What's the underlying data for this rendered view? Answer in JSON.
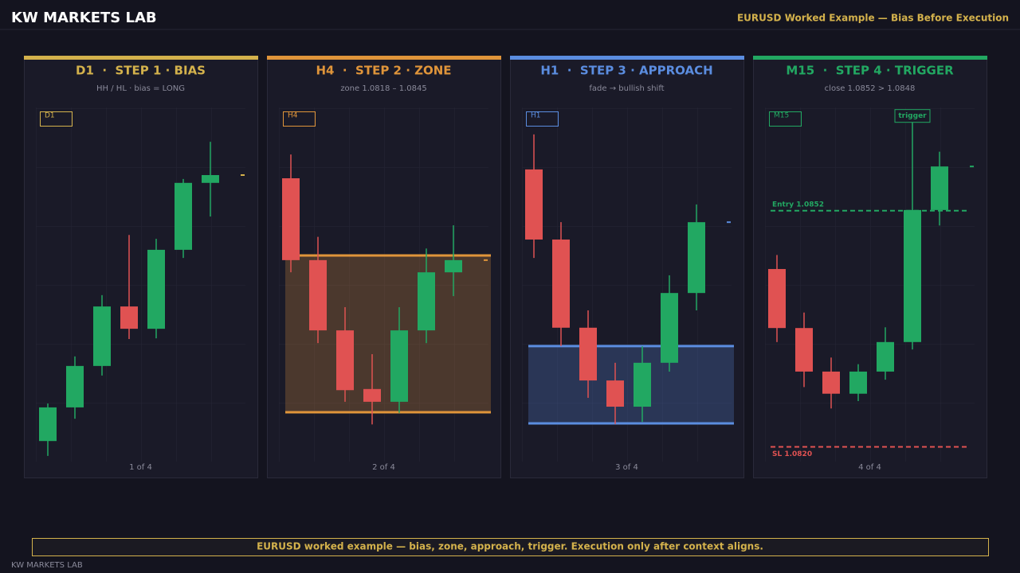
{
  "header": {
    "title": "KW MARKETS LAB",
    "subtitle": "EURUSD Worked Example — Bias Before Execution"
  },
  "banner": "EURUSD worked example — bias, zone, approach, trigger. Execution only after context aligns.",
  "footer": "KW MARKETS LAB",
  "chart_data": [
    {
      "type": "candlestick",
      "title": "D1  ·  STEP 1 · BIAS",
      "subtitle": "HH / HL · bias = LONG",
      "tag": "D1",
      "page": "1 of 4",
      "color": "#d4b24c",
      "up_color": "#22a862",
      "down_color": "#e05252",
      "ylim": [
        0,
        100
      ],
      "open": [
        5.8,
        15.3,
        27.0,
        43.8,
        37.5,
        59.8,
        78.7
      ],
      "high": [
        16.4,
        29.7,
        47.0,
        64.0,
        62.9,
        79.8,
        90.3
      ],
      "low": [
        1.6,
        12.1,
        24.3,
        34.6,
        34.8,
        57.5,
        69.2
      ],
      "close": [
        15.3,
        27.0,
        43.8,
        37.5,
        59.8,
        78.7,
        80.9
      ]
    },
    {
      "type": "candlestick",
      "title": "H4  ·  STEP 2 · ZONE",
      "subtitle": "zone 1.0818 – 1.0845",
      "tag": "H4",
      "page": "2 of 4",
      "color": "#e0953a",
      "up_color": "#22a862",
      "down_color": "#e05252",
      "ylim": [
        1.08095,
        1.08705
      ],
      "zone": [
        1.0818,
        1.0845
      ],
      "open": [
        1.08583,
        1.08442,
        1.08321,
        1.0822,
        1.08198,
        1.08321,
        1.08421
      ],
      "high": [
        1.08624,
        1.08482,
        1.08361,
        1.0828,
        1.08361,
        1.08462,
        1.08502
      ],
      "low": [
        1.08421,
        1.08299,
        1.08198,
        1.08159,
        1.08179,
        1.08299,
        1.0838
      ],
      "close": [
        1.08442,
        1.08321,
        1.08218,
        1.08198,
        1.08321,
        1.08421,
        1.08442
      ]
    },
    {
      "type": "candlestick",
      "title": "H1  ·  STEP 3 · APPROACH",
      "subtitle": "fade → bullish shift",
      "tag": "H1",
      "page": "3 of 4",
      "color": "#5b8de0",
      "up_color": "#22a862",
      "down_color": "#e05252",
      "ylim": [
        0,
        100
      ],
      "zone": [
        10.8,
        32.6
      ],
      "open": [
        82.5,
        62.7,
        37.8,
        22.9,
        15.5,
        27.9,
        47.6
      ],
      "high": [
        92.4,
        67.6,
        42.7,
        27.9,
        32.6,
        52.6,
        72.6
      ],
      "low": [
        57.5,
        32.6,
        18.0,
        10.6,
        11.2,
        25.4,
        42.7
      ],
      "close": [
        62.7,
        37.8,
        22.9,
        15.5,
        27.9,
        47.6,
        67.6
      ]
    },
    {
      "type": "candlestick",
      "title": "M15  ·  STEP 4 · TRIGGER",
      "subtitle": "close 1.0852 > 1.0848",
      "tag": "M15",
      "page": "4 of 4",
      "color": "#22a862",
      "up_color": "#22a862",
      "down_color": "#e05252",
      "ylim": [
        1.0818,
        1.0866
      ],
      "lines": [
        {
          "label": "Entry 1.0852",
          "value": 1.0852,
          "color": "#22a862"
        },
        {
          "label": "SL 1.0820",
          "value": 1.082,
          "color": "#e05252"
        }
      ],
      "annotation": {
        "text": "trigger",
        "index": 5
      },
      "open": [
        1.08441,
        1.08361,
        1.08302,
        1.08272,
        1.08302,
        1.08342,
        1.08521
      ],
      "high": [
        1.0846,
        1.08382,
        1.08321,
        1.08312,
        1.08362,
        1.08642,
        1.086
      ],
      "low": [
        1.08342,
        1.08281,
        1.08252,
        1.08262,
        1.08291,
        1.08332,
        1.085
      ],
      "close": [
        1.08361,
        1.08302,
        1.08272,
        1.08302,
        1.08342,
        1.08521,
        1.0858
      ]
    }
  ]
}
